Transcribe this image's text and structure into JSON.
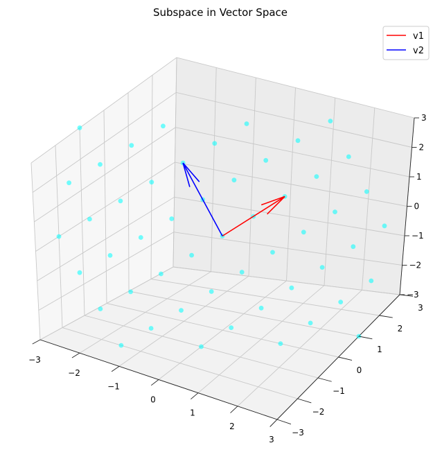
{
  "chart_data": {
    "type": "scatter3d",
    "title": "Subspace in Vector Space",
    "xlabel": "",
    "ylabel": "",
    "zlabel": "",
    "xlim": [
      -3,
      3
    ],
    "ylim": [
      -3,
      3
    ],
    "zlim": [
      -3,
      3
    ],
    "x_ticks": [
      "−3",
      "−2",
      "−1",
      "0",
      "1",
      "2",
      "3"
    ],
    "y_ticks": [
      "−3",
      "−2",
      "−1",
      "0",
      "1",
      "2",
      "3"
    ],
    "z_ticks": [
      "−3",
      "−2",
      "−1",
      "0",
      "1",
      "2",
      "3"
    ],
    "grid": true,
    "legend_position": "top-right",
    "plane": {
      "description_basis": "points = a*v1 + b*v2",
      "a_values": [
        -2,
        -1.5,
        -1,
        -0.5,
        0,
        0.5,
        1,
        1.5,
        2
      ],
      "b_values": [
        -2,
        -1.5,
        -1,
        -0.5,
        0,
        0.5,
        1,
        1.5,
        2
      ],
      "color": "#00ffff",
      "alpha": 0.55
    },
    "vectors": [
      {
        "name": "v1",
        "origin": [
          0,
          0,
          0
        ],
        "components": [
          1,
          1,
          1
        ],
        "color": "#ff0000"
      },
      {
        "name": "v2",
        "origin": [
          0,
          0,
          0
        ],
        "components": [
          -1,
          0,
          2
        ],
        "color": "#0000ff"
      }
    ]
  }
}
